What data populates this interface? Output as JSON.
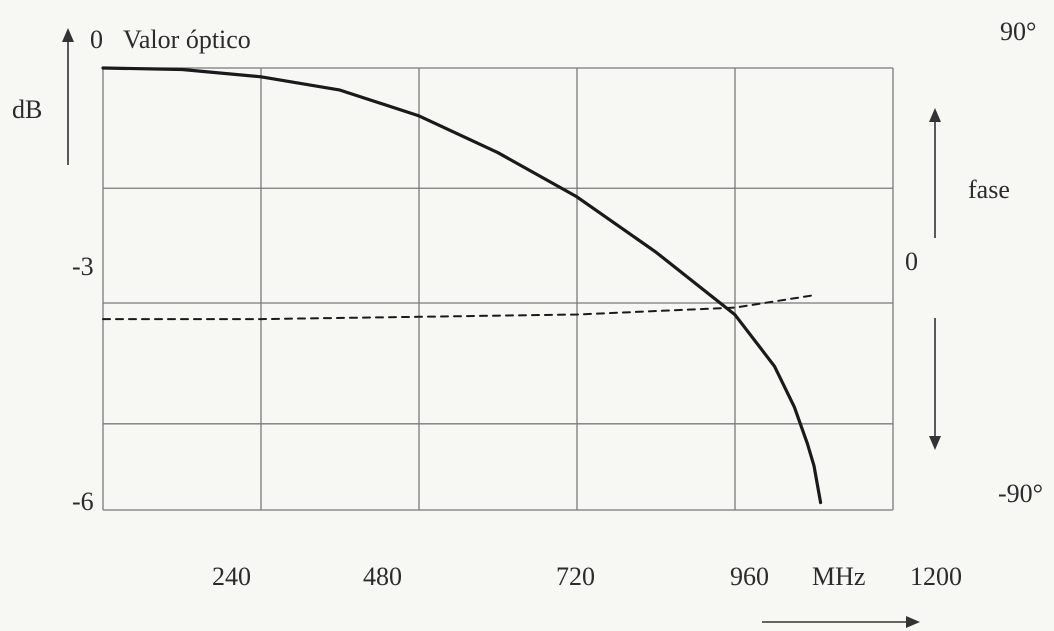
{
  "chart_data": {
    "type": "line",
    "xlabel": "MHz",
    "xlim": [
      0,
      1200
    ],
    "x_ticks": [
      "240",
      "480",
      "720",
      "960",
      "1200"
    ],
    "ylabel": "dB",
    "ylim": [
      -6,
      0
    ],
    "y_ticks": [
      "0",
      "-3",
      "-6"
    ],
    "y_zero_annotation": "Valor óptico",
    "y2label": "fase",
    "y2lim": [
      -90,
      90
    ],
    "y2_ticks": [
      "90°",
      "0",
      "-90°"
    ],
    "grid": true,
    "series": [
      {
        "axis": "left",
        "style": "solid",
        "color": "#1a1a1a",
        "x": [
          0,
          120,
          240,
          360,
          480,
          600,
          720,
          840,
          960,
          1020,
          1050,
          1070,
          1080,
          1090
        ],
        "y": [
          0,
          -0.02,
          -0.12,
          -0.3,
          -0.65,
          -1.15,
          -1.75,
          -2.5,
          -3.35,
          -4.05,
          -4.6,
          -5.1,
          -5.4,
          -5.9
        ]
      },
      {
        "axis": "right",
        "style": "dashed",
        "color": "#1a1a1a",
        "x": [
          0,
          240,
          480,
          720,
          960,
          1080
        ],
        "y": [
          -7,
          -7,
          -6,
          -5,
          -2,
          3
        ]
      }
    ]
  }
}
